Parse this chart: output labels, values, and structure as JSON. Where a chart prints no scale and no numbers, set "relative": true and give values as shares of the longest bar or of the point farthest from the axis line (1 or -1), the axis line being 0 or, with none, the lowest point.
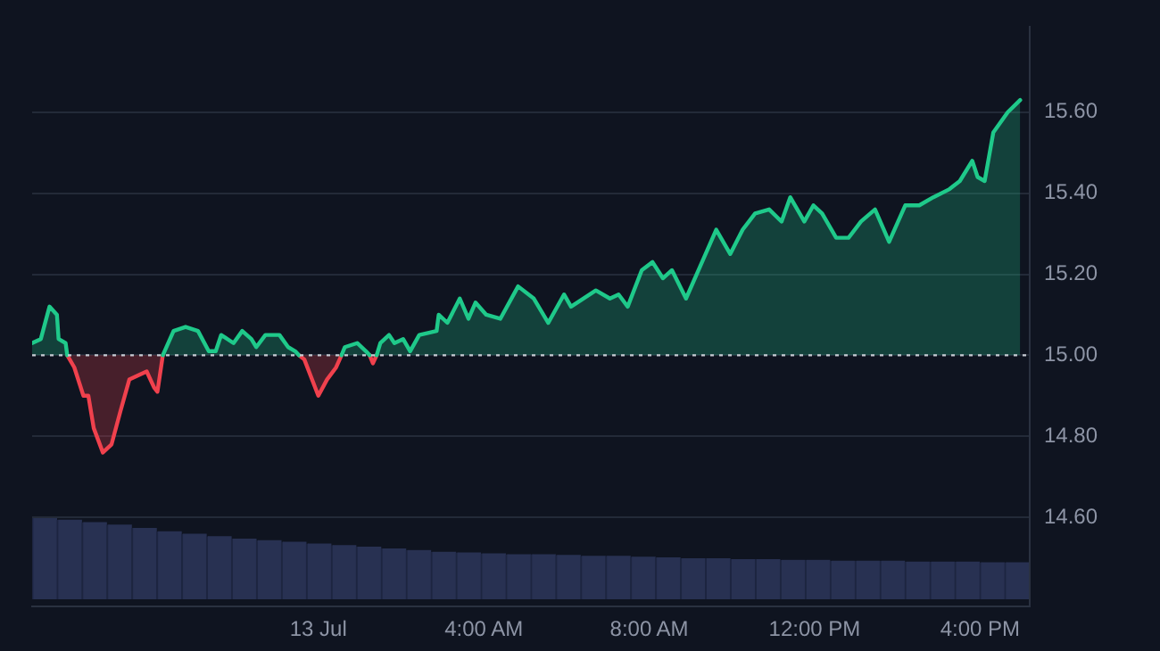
{
  "chart_data": [
    {
      "type": "line",
      "x": [
        -6.92,
        -6.71,
        -6.5,
        -6.32,
        -6.28,
        -6.11,
        -6.07,
        -5.9,
        -5.68,
        -5.56,
        -5.43,
        -5.21,
        -5.0,
        -4.79,
        -4.57,
        -4.15,
        -3.97,
        -3.89,
        -3.76,
        -3.5,
        -3.21,
        -2.91,
        -2.65,
        -2.48,
        -2.35,
        -2.05,
        -1.84,
        -1.62,
        -1.5,
        -1.28,
        -0.94,
        -0.73,
        -0.56,
        -0.47,
        -0.34,
        0,
        0.21,
        0.43,
        0.56,
        0.64,
        0.94,
        1.15,
        1.24,
        1.32,
        1.41,
        1.5,
        1.71,
        1.84,
        2.05,
        2.22,
        2.44,
        2.86,
        2.91,
        3.12,
        3.42,
        3.63,
        3.8,
        4.06,
        4.4,
        4.83,
        5.21,
        5.56,
        5.94,
        6.11,
        6.71,
        7.05,
        7.26,
        7.48,
        7.82,
        8.08,
        8.33,
        8.55,
        8.89,
        9.32,
        9.62,
        9.96,
        10.26,
        10.56,
        10.9,
        11.2,
        11.41,
        11.75,
        11.97,
        12.18,
        12.52,
        12.82,
        13.12,
        13.46,
        13.8,
        14.19,
        14.53,
        14.87,
        15.26,
        15.51,
        15.81,
        15.94,
        16.11,
        16.32,
        16.67,
        16.97
      ],
      "series": [
        {
          "color": "#1fc98a",
          "values": [
            15.03,
            15.04,
            15.12,
            15.1,
            15.04,
            15.03,
            15.0,
            null,
            null,
            null,
            null,
            null,
            null,
            null,
            null,
            null,
            null,
            null,
            15.0,
            15.06,
            15.07,
            15.06,
            15.01,
            15.01,
            15.05,
            15.03,
            15.06,
            15.04,
            15.02,
            15.05,
            15.05,
            15.02,
            15.01,
            15.0,
            null,
            null,
            null,
            null,
            15.0,
            15.02,
            15.03,
            15.01,
            15.0,
            null,
            15.0,
            15.03,
            15.05,
            15.03,
            15.04,
            15.01,
            15.05,
            15.06,
            15.1,
            15.08,
            15.14,
            15.09,
            15.13,
            15.1,
            15.09,
            15.17,
            15.14,
            15.08,
            15.15,
            15.12,
            15.16,
            15.14,
            15.15,
            15.12,
            15.21,
            15.23,
            15.19,
            15.21,
            15.14,
            15.24,
            15.31,
            15.25,
            15.31,
            15.35,
            15.36,
            15.33,
            15.39,
            15.33,
            15.37,
            15.35,
            15.29,
            15.29,
            15.33,
            15.36,
            15.28,
            15.37,
            15.37,
            15.39,
            15.41,
            15.43,
            15.48,
            15.44,
            15.43,
            15.55,
            15.6,
            15.63
          ]
        },
        {
          "color": "#f0414d",
          "values": [
            null,
            null,
            null,
            null,
            null,
            null,
            15.0,
            14.97,
            14.9,
            14.9,
            14.82,
            14.76,
            14.78,
            14.86,
            14.94,
            14.96,
            14.92,
            14.91,
            15.0,
            null,
            null,
            null,
            null,
            null,
            null,
            null,
            null,
            null,
            null,
            null,
            null,
            null,
            null,
            15.0,
            14.99,
            14.9,
            14.94,
            14.97,
            15.0,
            null,
            null,
            null,
            15.0,
            14.98,
            15.0,
            null,
            null,
            null,
            null,
            null,
            null,
            null,
            null,
            null,
            null,
            null,
            null,
            null,
            null,
            null,
            null,
            null,
            null,
            null,
            null,
            null,
            null,
            null,
            null,
            null,
            null,
            null,
            null,
            null,
            null,
            null,
            null,
            null,
            null,
            null,
            null,
            null,
            null,
            null,
            null,
            null,
            null,
            null,
            null,
            null,
            null,
            null,
            null,
            null,
            null,
            null,
            null,
            null,
            null,
            null
          ]
        }
      ],
      "xlim": [
        -6.92,
        17.2
      ],
      "xticks": [
        {
          "value": 0,
          "label": "13 Jul"
        },
        {
          "value": 4,
          "label": "4:00 AM"
        },
        {
          "value": 8,
          "label": "8:00 AM"
        },
        {
          "value": 12,
          "label": "12:00 PM"
        },
        {
          "value": 16,
          "label": "4:00 PM"
        }
      ],
      "ylim": [
        14.38,
        15.81
      ],
      "yticks": [
        {
          "value": 14.6,
          "label": "14.60"
        },
        {
          "value": 14.8,
          "label": "14.80"
        },
        {
          "value": 15,
          "label": "15.00"
        },
        {
          "value": 15.2,
          "label": "15.20"
        },
        {
          "value": 15.4,
          "label": "15.40"
        },
        {
          "value": 15.6,
          "label": "15.60"
        }
      ],
      "ref_lines": [
        {
          "axis": "y",
          "value": 15,
          "color": "#c8ccd4",
          "line_style": "dotted"
        }
      ],
      "grid": "y",
      "marker": "none"
    },
    {
      "type": "bar",
      "relative": true,
      "color": "#283152",
      "categories": [
        null,
        null,
        null,
        null,
        null,
        null,
        null,
        null,
        null,
        null,
        null,
        null,
        null,
        null,
        null,
        null,
        null,
        null,
        null,
        null,
        null,
        null,
        null,
        null,
        null,
        null,
        null,
        null,
        null,
        null,
        null,
        null,
        null,
        null,
        null,
        null,
        null,
        null,
        null,
        null
      ],
      "values": [
        1,
        0.97,
        0.94,
        0.91,
        0.87,
        0.83,
        0.8,
        0.77,
        0.74,
        0.72,
        0.7,
        0.68,
        0.66,
        0.64,
        0.62,
        0.6,
        0.58,
        0.57,
        0.56,
        0.55,
        0.55,
        0.54,
        0.53,
        0.53,
        0.52,
        0.51,
        0.5,
        0.5,
        0.49,
        0.49,
        0.48,
        0.48,
        0.47,
        0.47,
        0.47,
        0.46,
        0.46,
        0.46,
        0.45,
        0.45
      ]
    }
  ]
}
